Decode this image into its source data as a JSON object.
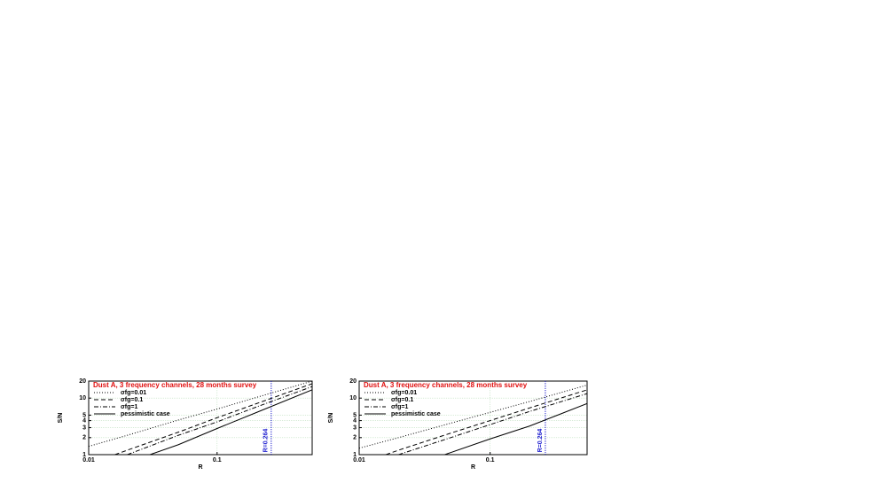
{
  "chart_data": [
    {
      "type": "line",
      "title": "Dust A, 3 frequency channels, 28 months survey",
      "xlabel": "R",
      "ylabel": "S/N",
      "log_x": true,
      "log_y": true,
      "grid": true,
      "legend": "upper left",
      "xlim": [
        0.01,
        0.55
      ],
      "xticks": [
        0.01,
        0.1
      ],
      "ylim": [
        1,
        20
      ],
      "yticks": [
        1,
        2,
        3,
        4,
        5,
        10,
        20
      ],
      "series": [
        {
          "name": "σfg=0.01",
          "color": "#000000",
          "style": "dotted",
          "x": [
            0.01,
            0.02,
            0.05,
            0.1,
            0.2,
            0.55
          ],
          "values": [
            1.4,
            2.2,
            4.1,
            6.4,
            10.2,
            20
          ]
        },
        {
          "name": "σfg=0.1",
          "color": "#000000",
          "style": "dashed",
          "x": [
            0.016,
            0.02,
            0.05,
            0.1,
            0.2,
            0.55
          ],
          "values": [
            1,
            1.2,
            2.5,
            4.5,
            7.9,
            18
          ]
        },
        {
          "name": "σfg=1",
          "color": "#000000",
          "style": "dashdot",
          "x": [
            0.02,
            0.05,
            0.1,
            0.2,
            0.55
          ],
          "values": [
            1,
            2.2,
            3.8,
            6.9,
            16
          ]
        },
        {
          "name": "pessimistic case",
          "color": "#000000",
          "style": "solid",
          "x": [
            0.03,
            0.05,
            0.1,
            0.2,
            0.55
          ],
          "values": [
            1,
            1.5,
            2.9,
            5.5,
            14
          ]
        }
      ],
      "annotation": {
        "x": 0.264,
        "label": "R=0.264",
        "color": "#2020d0"
      }
    },
    {
      "type": "line",
      "title": "Dust A, 3 frequency channels, 28 months survey",
      "xlabel": "R",
      "ylabel": "S/N",
      "log_x": true,
      "log_y": true,
      "grid": true,
      "legend": "upper left",
      "xlim": [
        0.01,
        0.55
      ],
      "xticks": [
        0.01,
        0.1
      ],
      "ylim": [
        1,
        20
      ],
      "yticks": [
        1,
        2,
        3,
        4,
        5,
        10,
        20
      ],
      "series": [
        {
          "name": "σfg=0.01",
          "color": "#000000",
          "style": "dotted",
          "x": [
            0.01,
            0.02,
            0.05,
            0.1,
            0.2,
            0.55
          ],
          "values": [
            1.3,
            2,
            3.6,
            5.6,
            8.7,
            17
          ]
        },
        {
          "name": "σfg=0.1",
          "color": "#000000",
          "style": "dashed",
          "x": [
            0.016,
            0.02,
            0.05,
            0.1,
            0.2,
            0.55
          ],
          "values": [
            1,
            1.2,
            2.4,
            4,
            6.7,
            14
          ]
        },
        {
          "name": "σfg=1",
          "color": "#000000",
          "style": "dashdot",
          "x": [
            0.02,
            0.05,
            0.1,
            0.2,
            0.55
          ],
          "values": [
            1,
            2,
            3.4,
            5.8,
            12
          ]
        },
        {
          "name": "pessimistic case",
          "color": "#000000",
          "style": "solid",
          "x": [
            0.045,
            0.1,
            0.2,
            0.55
          ],
          "values": [
            1,
            1.9,
            3.2,
            8
          ]
        }
      ],
      "annotation": {
        "x": 0.264,
        "label": "R=0.264",
        "color": "#2020d0"
      }
    }
  ]
}
